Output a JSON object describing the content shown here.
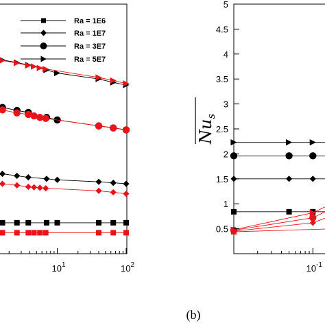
{
  "caption": "(b)",
  "colors": {
    "black": "#000000",
    "red": "#e8141a",
    "axis": "#000000"
  },
  "chart_data": [
    {
      "type": "line",
      "xscale": "log",
      "xlim": [
        1,
        100
      ],
      "ylim": [
        0.0,
        5.0
      ],
      "xticks": [
        {
          "value": 10,
          "base": "10",
          "exp": "1"
        },
        {
          "value": 100,
          "base": "10",
          "exp": "2"
        }
      ],
      "legend": {
        "placement": "top-right",
        "entries": [
          {
            "label": "Ra = 1E6",
            "marker": "square"
          },
          {
            "label": "Ra = 1E7",
            "marker": "diamond"
          },
          {
            "label": "Ra = 3E7",
            "marker": "circle"
          },
          {
            "label": "Ra = 5E7",
            "marker": "triangle-right"
          }
        ]
      },
      "series": [
        {
          "name": "Ra = 1E6",
          "marker": "square",
          "color": "#000000",
          "x": [
            1.0,
            1.6,
            2.6,
            3.8,
            7.0,
            10.0,
            40.0,
            65.0,
            100.0
          ],
          "y": [
            0.62,
            0.62,
            0.62,
            0.62,
            0.62,
            0.62,
            0.62,
            0.62,
            0.62
          ]
        },
        {
          "name": "Ra = 1E6 (red)",
          "marker": "square",
          "color": "#e8141a",
          "x": [
            1.0,
            1.6,
            2.6,
            3.8,
            4.6,
            5.6,
            6.8,
            40.0,
            65.0,
            100.0
          ],
          "y": [
            0.42,
            0.42,
            0.42,
            0.42,
            0.42,
            0.42,
            0.42,
            0.42,
            0.42,
            0.42
          ]
        },
        {
          "name": "Ra = 1E7",
          "marker": "diamond",
          "color": "#000000",
          "x": [
            1.0,
            1.6,
            2.6,
            3.8,
            7.0,
            10.0,
            40.0,
            65.0,
            100.0
          ],
          "y": [
            1.62,
            1.6,
            1.56,
            1.53,
            1.5,
            1.48,
            1.44,
            1.42,
            1.4
          ]
        },
        {
          "name": "Ra = 1E7 (red)",
          "marker": "diamond",
          "color": "#e8141a",
          "x": [
            1.0,
            1.6,
            2.6,
            3.8,
            4.6,
            5.6,
            6.8,
            40.0,
            65.0,
            100.0
          ],
          "y": [
            1.45,
            1.4,
            1.37,
            1.34,
            1.33,
            1.32,
            1.31,
            1.26,
            1.23,
            1.2
          ]
        },
        {
          "name": "Ra = 3E7",
          "marker": "circle",
          "color": "#000000",
          "x": [
            1.0,
            1.6,
            2.6,
            3.8,
            7.0,
            10.0,
            40.0,
            65.0,
            100.0
          ],
          "y": [
            2.98,
            2.93,
            2.87,
            2.83,
            2.73,
            2.68,
            2.56,
            2.52,
            2.48
          ]
        },
        {
          "name": "Ra = 3E7 (red)",
          "marker": "circle",
          "color": "#e8141a",
          "x": [
            1.0,
            1.6,
            2.6,
            3.8,
            4.6,
            5.6,
            6.8,
            40.0,
            65.0,
            100.0
          ],
          "y": [
            2.93,
            2.88,
            2.82,
            2.79,
            2.76,
            2.73,
            2.71,
            2.56,
            2.52,
            2.48
          ]
        },
        {
          "name": "Ra = 5E7",
          "marker": "triangle-right",
          "color": "#000000",
          "x": [
            1.0,
            1.6,
            2.6,
            3.8,
            7.0,
            10.0,
            40.0,
            65.0,
            100.0
          ],
          "y": [
            3.95,
            3.88,
            3.83,
            3.78,
            3.68,
            3.62,
            3.5,
            3.43,
            3.38
          ]
        },
        {
          "name": "Ra = 5E7 (red)",
          "marker": "triangle-right",
          "color": "#e8141a",
          "x": [
            1.0,
            1.6,
            2.6,
            3.8,
            4.6,
            5.6,
            6.8,
            40.0,
            65.0,
            100.0
          ],
          "y": [
            3.92,
            3.87,
            3.82,
            3.77,
            3.75,
            3.72,
            3.7,
            3.53,
            3.47,
            3.41
          ]
        }
      ]
    },
    {
      "type": "line",
      "xscale": "log",
      "xlim": [
        0.01,
        0.2
      ],
      "ylim": [
        0.0,
        5.0
      ],
      "ylabel": "Nu_s",
      "yticks": [
        {
          "value": 0.5,
          "label": "0.5"
        },
        {
          "value": 1.0,
          "label": "1"
        },
        {
          "value": 1.5,
          "label": "1.5"
        },
        {
          "value": 2.0,
          "label": "2"
        },
        {
          "value": 2.5,
          "label": "2.5"
        },
        {
          "value": 3.0,
          "label": "3"
        },
        {
          "value": 3.5,
          "label": "3.5"
        },
        {
          "value": 4.0,
          "label": "4"
        },
        {
          "value": 4.5,
          "label": "4.5"
        },
        {
          "value": 5.0,
          "label": "5"
        }
      ],
      "xticks": [
        {
          "value": 0.1,
          "base": "10",
          "exp": "-1"
        }
      ],
      "series": [
        {
          "name": "Ra = 5E7",
          "marker": "triangle-right",
          "color": "#000000",
          "x": [
            0.01,
            0.05,
            0.1,
            0.2
          ],
          "y": [
            2.23,
            2.23,
            2.23,
            2.23
          ]
        },
        {
          "name": "Ra = 3E7",
          "marker": "circle",
          "color": "#000000",
          "x": [
            0.01,
            0.05,
            0.1,
            0.2
          ],
          "y": [
            1.96,
            1.96,
            1.96,
            1.96
          ]
        },
        {
          "name": "Ra = 1E7",
          "marker": "diamond",
          "color": "#000000",
          "x": [
            0.01,
            0.05,
            0.1,
            0.2
          ],
          "y": [
            1.5,
            1.5,
            1.5,
            1.5
          ]
        },
        {
          "name": "Ra = 1E6",
          "marker": "square",
          "color": "#000000",
          "x": [
            0.01,
            0.05,
            0.1,
            0.2
          ],
          "y": [
            0.84,
            0.84,
            0.84,
            0.84
          ]
        },
        {
          "name": "Ra = 5E7 (red)",
          "marker": "triangle-right",
          "color": "#e8141a",
          "x": [
            0.01,
            0.1,
            0.2
          ],
          "y": [
            0.48,
            0.82,
            1.05
          ]
        },
        {
          "name": "Ra = 3E7 (red)",
          "marker": "circle",
          "color": "#e8141a",
          "x": [
            0.01,
            0.1,
            0.2
          ],
          "y": [
            0.47,
            0.72,
            0.95
          ]
        },
        {
          "name": "Ra = 1E7 (red)",
          "marker": "diamond",
          "color": "#e8141a",
          "x": [
            0.01,
            0.1,
            0.2
          ],
          "y": [
            0.45,
            0.62,
            0.8
          ]
        },
        {
          "name": "Ra = 1E6 (red)",
          "marker": "square",
          "color": "#e8141a",
          "x": [
            0.01,
            0.2
          ],
          "y": [
            0.44,
            0.5
          ]
        }
      ]
    }
  ]
}
